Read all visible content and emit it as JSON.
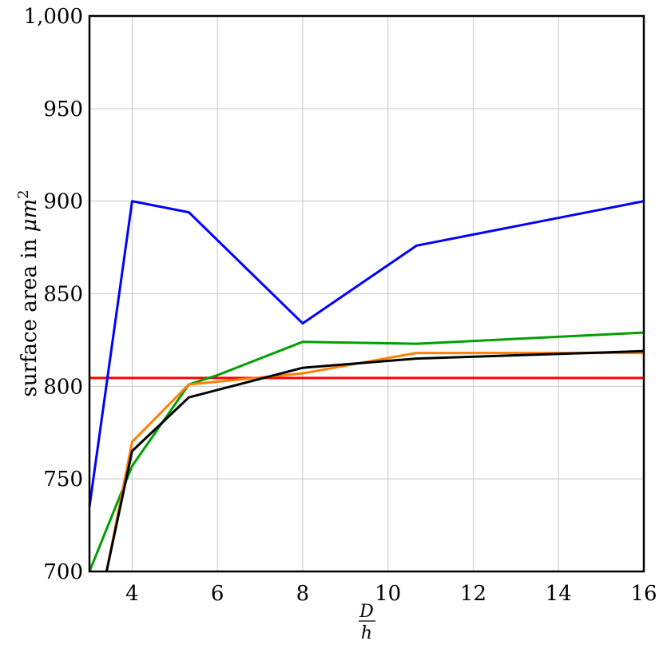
{
  "chart_data": {
    "type": "line",
    "title": "",
    "xlabel": {
      "numerator": "D",
      "denominator": "h"
    },
    "ylabel": {
      "text": "surface area in ",
      "unit_base": "μm",
      "unit_exp": "2"
    },
    "xlim": [
      3,
      16
    ],
    "ylim": [
      700,
      1000
    ],
    "xticks": [
      4,
      6,
      8,
      10,
      12,
      14,
      16
    ],
    "yticks": [
      700,
      750,
      800,
      850,
      900,
      950,
      1000
    ],
    "ytick_labels": [
      "700",
      "750",
      "800",
      "850",
      "900",
      "950",
      "1,000"
    ],
    "grid": true,
    "series": [
      {
        "color": "#ff0000",
        "x": [
          3,
          16
        ],
        "y": [
          804.5,
          804.5
        ]
      },
      {
        "color": "#0000ff",
        "x": [
          3,
          4,
          5.33,
          8,
          10.67,
          16
        ],
        "y": [
          735,
          900,
          894,
          834,
          876,
          900
        ]
      },
      {
        "color": "#00a000",
        "x": [
          3,
          4,
          5.33,
          6,
          8,
          10.67,
          16
        ],
        "y": [
          700,
          757,
          801,
          806,
          824,
          823,
          829
        ]
      },
      {
        "color": "#ff8000",
        "x": [
          3.4,
          4,
          5.33,
          8,
          10.67,
          16
        ],
        "y": [
          700,
          770,
          801,
          807,
          818,
          818
        ]
      },
      {
        "color": "#000000",
        "x": [
          3.4,
          4,
          5.33,
          8,
          10.67,
          16
        ],
        "y": [
          700,
          765,
          794,
          810,
          815,
          819
        ]
      }
    ]
  }
}
